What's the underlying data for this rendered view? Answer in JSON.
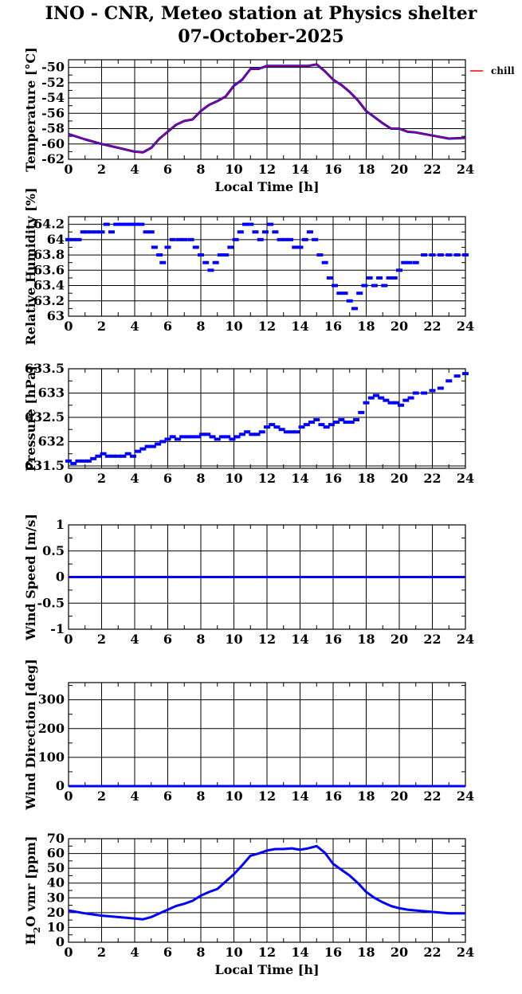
{
  "title_line_1": "INO - CNR, Meteo station at Physics shelter",
  "title_line_2": "07-October-2025",
  "colors": {
    "series": "#0000ff",
    "overlay": "#ff0000",
    "grid": "#000000"
  },
  "chart_data": [
    {
      "type": "line",
      "ylabel": "Temperature [°C]",
      "xlabel": "Local Time [h]",
      "xlim": [
        0,
        24
      ],
      "ylim": [
        -62,
        -49
      ],
      "yticks": [
        -62,
        -60,
        -58,
        -56,
        -54,
        -52,
        -50
      ],
      "ytick_labels": [
        "-62",
        "-60",
        "-58",
        "-56",
        "-54",
        "-52",
        "-50"
      ],
      "xticks": [
        0,
        2,
        4,
        6,
        8,
        10,
        12,
        14,
        16,
        18,
        20,
        22,
        24
      ],
      "legend": {
        "label": "chill",
        "position": "right-outside",
        "color": "#ff0000"
      },
      "series": [
        {
          "x": [
            0,
            1,
            2,
            3,
            4,
            4.5,
            5,
            5.5,
            6,
            6.5,
            7,
            7.5,
            8,
            8.5,
            9,
            9.5,
            10,
            10.5,
            11,
            11.5,
            12,
            12.5,
            13,
            13.5,
            14,
            14.5,
            15,
            15.5,
            16,
            16.5,
            17,
            17.5,
            18,
            18.5,
            19,
            19.5,
            20,
            20.5,
            21,
            22,
            23,
            24
          ],
          "y": [
            -58.7,
            -59.4,
            -60.0,
            -60.5,
            -61.0,
            -61.1,
            -60.5,
            -59.3,
            -58.4,
            -57.5,
            -57.0,
            -56.8,
            -55.7,
            -54.9,
            -54.4,
            -53.8,
            -52.4,
            -51.6,
            -50.2,
            -50.2,
            -49.8,
            -49.8,
            -49.8,
            -49.8,
            -49.8,
            -49.8,
            -49.6,
            -50.5,
            -51.6,
            -52.3,
            -53.2,
            -54.3,
            -55.7,
            -56.5,
            -57.3,
            -58.0,
            -58.0,
            -58.4,
            -58.5,
            -58.9,
            -59.3,
            -59.2
          ]
        }
      ]
    },
    {
      "type": "scatter",
      "ylabel": "Relative Humidity [%]",
      "xlabel": "",
      "xlim": [
        0,
        24
      ],
      "ylim": [
        63,
        64.3
      ],
      "yticks": [
        63,
        63.2,
        63.4,
        63.6,
        63.8,
        64,
        64.2
      ],
      "ytick_labels": [
        "63",
        "63.2",
        "63.4",
        "63.6",
        "63.8",
        "64",
        "64.2"
      ],
      "xticks": [
        0,
        2,
        4,
        6,
        8,
        10,
        12,
        14,
        16,
        18,
        20,
        22,
        24
      ],
      "series": [
        {
          "x": [
            0,
            0.3,
            0.6,
            0.9,
            1.1,
            1.4,
            1.7,
            2.0,
            2.3,
            2.6,
            2.9,
            3.2,
            3.5,
            3.8,
            4.1,
            4.4,
            4.7,
            5.0,
            5.2,
            5.5,
            5.7,
            6.0,
            6.3,
            6.7,
            7.0,
            7.4,
            7.7,
            8.0,
            8.3,
            8.6,
            8.9,
            9.2,
            9.5,
            9.8,
            10.1,
            10.4,
            10.7,
            11.0,
            11.3,
            11.6,
            11.9,
            12.2,
            12.5,
            12.8,
            13.1,
            13.4,
            13.7,
            14.0,
            14.3,
            14.6,
            14.9,
            15.2,
            15.5,
            15.8,
            16.1,
            16.4,
            16.7,
            17.0,
            17.3,
            17.6,
            17.9,
            18.2,
            18.5,
            18.8,
            19.1,
            19.4,
            19.7,
            20.0,
            20.3,
            20.6,
            21.0,
            21.5,
            22.0,
            22.5,
            23.0,
            23.5,
            24.0
          ],
          "y": [
            64.0,
            64.0,
            64.0,
            64.1,
            64.1,
            64.1,
            64.1,
            64.1,
            64.2,
            64.1,
            64.2,
            64.2,
            64.2,
            64.2,
            64.2,
            64.2,
            64.1,
            64.1,
            63.9,
            63.8,
            63.7,
            63.9,
            64.0,
            64.0,
            64.0,
            64.0,
            63.9,
            63.8,
            63.7,
            63.6,
            63.7,
            63.8,
            63.8,
            63.9,
            64.0,
            64.1,
            64.2,
            64.2,
            64.1,
            64.0,
            64.1,
            64.2,
            64.1,
            64.0,
            64.0,
            64.0,
            63.9,
            63.9,
            64.0,
            64.1,
            64.0,
            63.8,
            63.7,
            63.5,
            63.4,
            63.3,
            63.3,
            63.2,
            63.1,
            63.3,
            63.4,
            63.5,
            63.4,
            63.5,
            63.4,
            63.5,
            63.5,
            63.6,
            63.7,
            63.7,
            63.7,
            63.8,
            63.8,
            63.8,
            63.8,
            63.8,
            63.8
          ]
        }
      ]
    },
    {
      "type": "scatter",
      "ylabel": "Pressure [hPa]",
      "xlabel": "",
      "xlim": [
        0,
        24
      ],
      "ylim": [
        631.45,
        633.5
      ],
      "yticks": [
        631.5,
        632,
        632.5,
        633,
        633.5
      ],
      "ytick_labels": [
        "631.5",
        "632",
        "632.5",
        "633",
        "633.5"
      ],
      "xticks": [
        0,
        2,
        4,
        6,
        8,
        10,
        12,
        14,
        16,
        18,
        20,
        22,
        24
      ],
      "series": [
        {
          "x": [
            0,
            0.3,
            0.6,
            0.9,
            1.2,
            1.5,
            1.8,
            2.1,
            2.4,
            2.7,
            3.0,
            3.3,
            3.6,
            3.9,
            4.2,
            4.5,
            4.8,
            5.1,
            5.4,
            5.7,
            6.0,
            6.3,
            6.6,
            6.9,
            7.2,
            7.5,
            7.8,
            8.1,
            8.4,
            8.7,
            9.0,
            9.3,
            9.6,
            9.9,
            10.2,
            10.5,
            10.8,
            11.1,
            11.4,
            11.7,
            12.0,
            12.3,
            12.6,
            12.9,
            13.2,
            13.5,
            13.8,
            14.1,
            14.4,
            14.7,
            15.0,
            15.3,
            15.6,
            15.9,
            16.2,
            16.5,
            16.8,
            17.1,
            17.4,
            17.7,
            18.0,
            18.3,
            18.6,
            18.9,
            19.2,
            19.5,
            19.8,
            20.1,
            20.4,
            20.7,
            21.0,
            21.5,
            22.0,
            22.5,
            23.0,
            23.5,
            24.0
          ],
          "y": [
            631.6,
            631.55,
            631.6,
            631.6,
            631.6,
            631.65,
            631.7,
            631.75,
            631.7,
            631.7,
            631.7,
            631.7,
            631.75,
            631.7,
            631.8,
            631.85,
            631.9,
            631.9,
            631.95,
            632.0,
            632.05,
            632.1,
            632.05,
            632.1,
            632.1,
            632.1,
            632.1,
            632.15,
            632.15,
            632.1,
            632.05,
            632.1,
            632.1,
            632.05,
            632.1,
            632.15,
            632.2,
            632.15,
            632.15,
            632.2,
            632.3,
            632.35,
            632.3,
            632.25,
            632.2,
            632.2,
            632.2,
            632.3,
            632.35,
            632.4,
            632.45,
            632.35,
            632.3,
            632.35,
            632.4,
            632.45,
            632.4,
            632.4,
            632.45,
            632.6,
            632.8,
            632.9,
            632.95,
            632.9,
            632.85,
            632.8,
            632.8,
            632.75,
            632.85,
            632.9,
            633.0,
            633.0,
            633.05,
            633.1,
            633.25,
            633.35,
            633.4
          ]
        }
      ]
    },
    {
      "type": "line",
      "ylabel": "Wind Speed [m/s]",
      "xlabel": "",
      "xlim": [
        0,
        24
      ],
      "ylim": [
        -1,
        1
      ],
      "yticks": [
        -1,
        -0.5,
        0,
        0.5,
        1
      ],
      "ytick_labels": [
        "-1",
        "-0.5",
        "0",
        "0.5",
        "1"
      ],
      "xticks": [
        0,
        2,
        4,
        6,
        8,
        10,
        12,
        14,
        16,
        18,
        20,
        22,
        24
      ],
      "series": [
        {
          "x": [
            0,
            24
          ],
          "y": [
            0,
            0
          ]
        }
      ]
    },
    {
      "type": "line",
      "ylabel": "Wind Direction [deg]",
      "xlabel": "",
      "xlim": [
        0,
        24
      ],
      "ylim": [
        0,
        360
      ],
      "yticks": [
        0,
        100,
        200,
        300
      ],
      "ytick_labels": [
        "0",
        "100",
        "200",
        "300"
      ],
      "xticks": [
        0,
        2,
        4,
        6,
        8,
        10,
        12,
        14,
        16,
        18,
        20,
        22,
        24
      ],
      "series": [
        {
          "x": [
            0,
            24
          ],
          "y": [
            0,
            0
          ]
        }
      ]
    },
    {
      "type": "line",
      "ylabel": "H2O vmr [ppm]",
      "ylabel_parts": [
        "H",
        "2",
        "O vmr [ppm]"
      ],
      "xlabel": "Local Time [h]",
      "xlim": [
        0,
        24
      ],
      "ylim": [
        0,
        70
      ],
      "yticks": [
        0,
        10,
        20,
        30,
        40,
        50,
        60,
        70
      ],
      "ytick_labels": [
        "0",
        "10",
        "20",
        "30",
        "40",
        "50",
        "60",
        "70"
      ],
      "xticks": [
        0,
        2,
        4,
        6,
        8,
        10,
        12,
        14,
        16,
        18,
        20,
        22,
        24
      ],
      "series": [
        {
          "x": [
            0,
            1,
            2,
            3,
            4,
            4.5,
            5,
            5.5,
            6,
            6.5,
            7,
            7.5,
            8,
            8.5,
            9,
            9.5,
            10,
            10.5,
            11,
            11.5,
            12,
            12.5,
            13,
            13.5,
            14,
            14.5,
            15,
            15.5,
            16,
            16.5,
            17,
            17.5,
            18,
            18.5,
            19,
            19.5,
            20,
            20.5,
            21,
            22,
            23,
            24
          ],
          "y": [
            21.5,
            19.5,
            18,
            17,
            16,
            15.5,
            17,
            19.5,
            22,
            24.5,
            26,
            28,
            31.5,
            34,
            36,
            41,
            46,
            52,
            58.5,
            60,
            62,
            63,
            63,
            63.5,
            62.5,
            63.5,
            65,
            60.5,
            53,
            49,
            45,
            40,
            34,
            30,
            27,
            24.5,
            23,
            22,
            21.5,
            20.5,
            19.5,
            19.5
          ]
        }
      ]
    }
  ]
}
